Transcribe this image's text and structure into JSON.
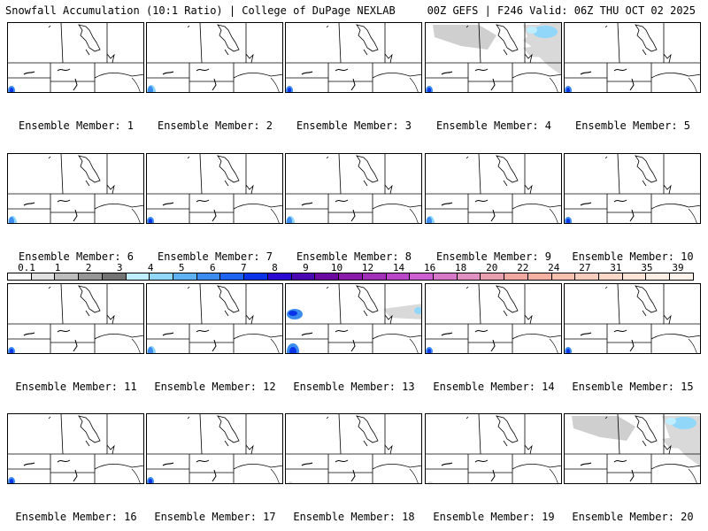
{
  "header": {
    "left": "Snowfall Accumulation (10:1 Ratio) | College of DuPage NEXLAB",
    "right": "00Z GEFS | F246 Valid: 06Z THU OCT 02 2025"
  },
  "panels": [
    {
      "label": "Ensemble Member: 1",
      "snow": "west-small"
    },
    {
      "label": "Ensemble Member: 2",
      "snow": "west-medium"
    },
    {
      "label": "Ensemble Member: 3",
      "snow": "west-small"
    },
    {
      "label": "Ensemble Member: 4",
      "snow": "west-small+northeast"
    },
    {
      "label": "Ensemble Member: 5",
      "snow": "west-small"
    },
    {
      "label": "Ensemble Member: 6",
      "snow": "west-medium"
    },
    {
      "label": "Ensemble Member: 7",
      "snow": "west-small"
    },
    {
      "label": "Ensemble Member: 8",
      "snow": "west-medium"
    },
    {
      "label": "Ensemble Member: 9",
      "snow": "west-medium"
    },
    {
      "label": "Ensemble Member: 10",
      "snow": "west-small"
    },
    {
      "label": "Ensemble Member: 11",
      "snow": "west-small"
    },
    {
      "label": "Ensemble Member: 12",
      "snow": "west-medium"
    },
    {
      "label": "Ensemble Member: 13",
      "snow": "west-large+east"
    },
    {
      "label": "Ensemble Member: 14",
      "snow": "west-small"
    },
    {
      "label": "Ensemble Member: 15",
      "snow": "west-small"
    },
    {
      "label": "Ensemble Member: 16",
      "snow": "west-small"
    },
    {
      "label": "Ensemble Member: 17",
      "snow": "west-small"
    },
    {
      "label": "Ensemble Member: 18",
      "snow": "trace"
    },
    {
      "label": "Ensemble Member: 19",
      "snow": "trace"
    },
    {
      "label": "Ensemble Member: 20",
      "snow": "north+east"
    }
  ],
  "colorbar": {
    "labels": [
      "0.1",
      "1",
      "2",
      "3",
      "4",
      "5",
      "6",
      "7",
      "8",
      "9",
      "10",
      "12",
      "14",
      "16",
      "18",
      "20",
      "22",
      "24",
      "27",
      "31",
      "35",
      "39"
    ],
    "colors": [
      "#ffffff",
      "#e0e0e0",
      "#bdbdbd",
      "#969696",
      "#737373",
      "#bfefff",
      "#91d7fa",
      "#5fb2f2",
      "#3c8cf0",
      "#1e64f0",
      "#0a32e6",
      "#2a0ad0",
      "#4a08b0",
      "#6a0aa0",
      "#8a1aa8",
      "#a030b8",
      "#b848c8",
      "#cc60d0",
      "#d878c8",
      "#e090c0",
      "#e8a0b0",
      "#f0a8a0",
      "#f4b0a0",
      "#f6bfae",
      "#f8ccbc",
      "#fad8c8",
      "#fce4d6",
      "#fdeee4",
      "#fef4ec"
    ]
  }
}
